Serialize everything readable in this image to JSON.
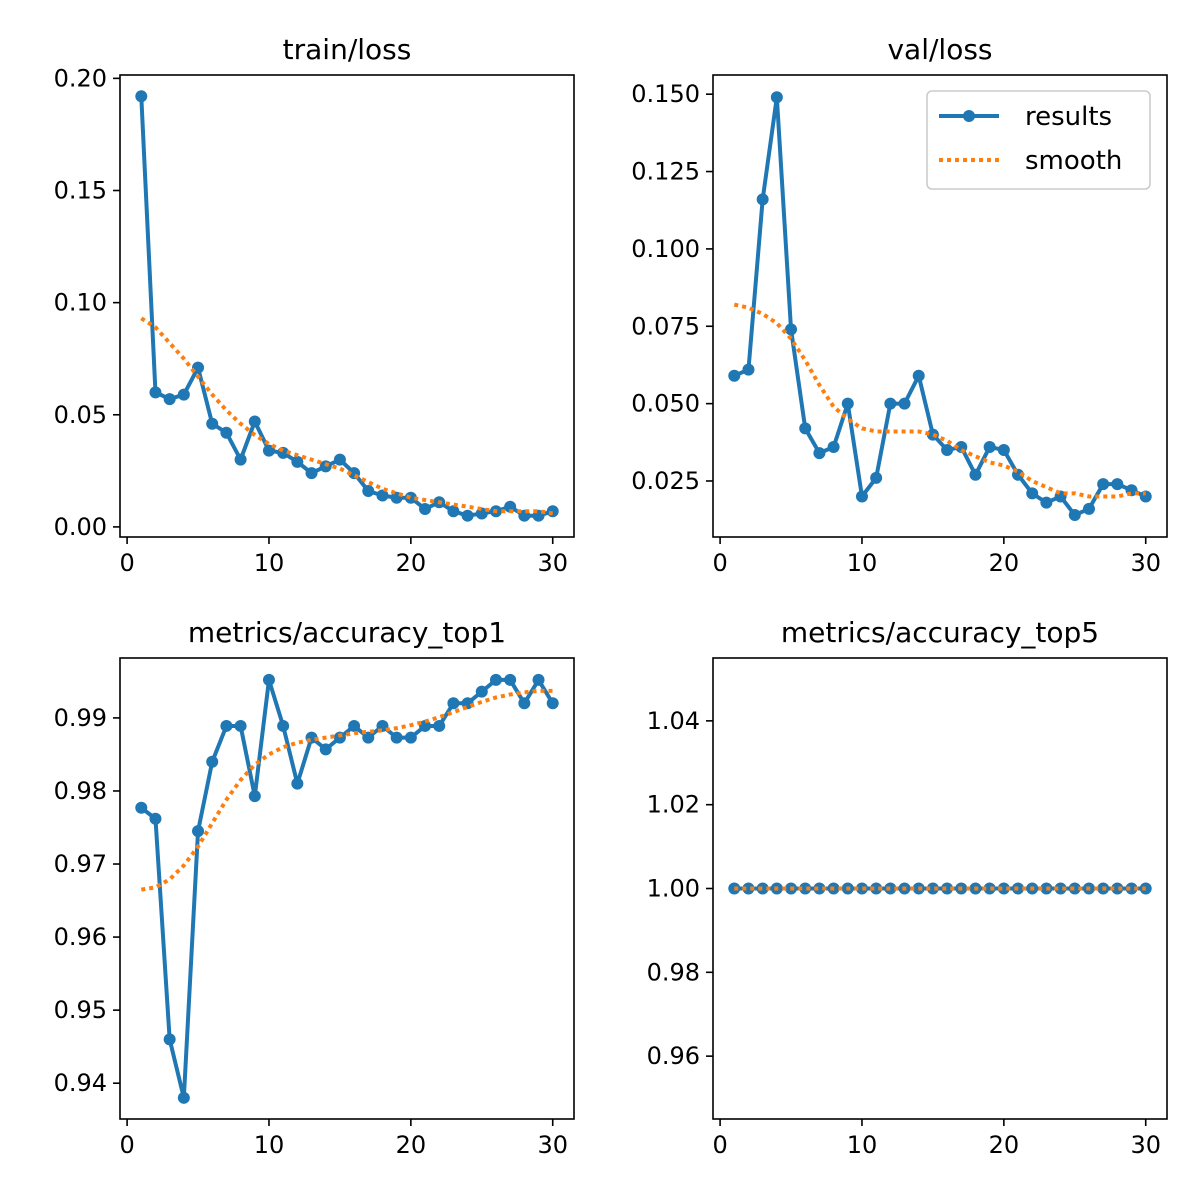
{
  "colors": {
    "results": "#1f77b4",
    "smooth": "#ff7f0e",
    "axis": "#000000",
    "legend_border": "#cccccc"
  },
  "legend": {
    "placement": "top-right",
    "items": [
      {
        "label": "results",
        "series": "results"
      },
      {
        "label": "smooth",
        "series": "smooth"
      }
    ]
  },
  "chart_data": [
    {
      "type": "line",
      "title": "train/loss",
      "xlim": [
        -0.5,
        31.5
      ],
      "ylim": [
        -0.0045,
        0.2015
      ],
      "xticks": [
        0,
        10,
        20,
        30
      ],
      "yticks": [
        0.0,
        0.05,
        0.1,
        0.15,
        0.2
      ],
      "ytick_labels": [
        "0.00",
        "0.05",
        "0.10",
        "0.15",
        "0.20"
      ],
      "x": [
        1,
        2,
        3,
        4,
        5,
        6,
        7,
        8,
        9,
        10,
        11,
        12,
        13,
        14,
        15,
        16,
        17,
        18,
        19,
        20,
        21,
        22,
        23,
        24,
        25,
        26,
        27,
        28,
        29,
        30
      ],
      "series": [
        {
          "name": "results",
          "style": "line-markers",
          "values": [
            0.192,
            0.06,
            0.057,
            0.059,
            0.071,
            0.046,
            0.042,
            0.03,
            0.047,
            0.034,
            0.033,
            0.029,
            0.024,
            0.027,
            0.03,
            0.024,
            0.016,
            0.014,
            0.013,
            0.013,
            0.008,
            0.011,
            0.007,
            0.005,
            0.006,
            0.007,
            0.009,
            0.005,
            0.005,
            0.007
          ]
        },
        {
          "name": "smooth",
          "style": "dotted",
          "values": [
            0.093,
            0.089,
            0.082,
            0.075,
            0.067,
            0.059,
            0.052,
            0.046,
            0.041,
            0.037,
            0.034,
            0.032,
            0.03,
            0.028,
            0.026,
            0.023,
            0.02,
            0.017,
            0.015,
            0.013,
            0.012,
            0.011,
            0.01,
            0.009,
            0.008,
            0.007,
            0.007,
            0.007,
            0.007,
            0.006
          ]
        }
      ],
      "legend": false
    },
    {
      "type": "line",
      "title": "val/loss",
      "xlim": [
        -0.5,
        31.5
      ],
      "ylim": [
        0.0069,
        0.1562
      ],
      "xticks": [
        0,
        10,
        20,
        30
      ],
      "yticks": [
        0.025,
        0.05,
        0.075,
        0.1,
        0.125,
        0.15
      ],
      "ytick_labels": [
        "0.025",
        "0.050",
        "0.075",
        "0.100",
        "0.125",
        "0.150"
      ],
      "x": [
        1,
        2,
        3,
        4,
        5,
        6,
        7,
        8,
        9,
        10,
        11,
        12,
        13,
        14,
        15,
        16,
        17,
        18,
        19,
        20,
        21,
        22,
        23,
        24,
        25,
        26,
        27,
        28,
        29,
        30
      ],
      "series": [
        {
          "name": "results",
          "style": "line-markers",
          "values": [
            0.059,
            0.061,
            0.116,
            0.149,
            0.074,
            0.042,
            0.034,
            0.036,
            0.05,
            0.02,
            0.026,
            0.05,
            0.05,
            0.059,
            0.04,
            0.035,
            0.036,
            0.027,
            0.036,
            0.035,
            0.027,
            0.021,
            0.018,
            0.02,
            0.014,
            0.016,
            0.024,
            0.024,
            0.022,
            0.02
          ]
        },
        {
          "name": "smooth",
          "style": "dotted",
          "values": [
            0.082,
            0.081,
            0.079,
            0.076,
            0.071,
            0.064,
            0.056,
            0.049,
            0.045,
            0.042,
            0.041,
            0.041,
            0.041,
            0.041,
            0.04,
            0.038,
            0.035,
            0.033,
            0.031,
            0.03,
            0.028,
            0.025,
            0.023,
            0.021,
            0.021,
            0.02,
            0.02,
            0.02,
            0.021,
            0.021
          ]
        }
      ],
      "legend": true
    },
    {
      "type": "line",
      "title": "metrics/accuracy_top1",
      "xlim": [
        -0.5,
        31.5
      ],
      "ylim": [
        0.9351,
        0.9982
      ],
      "xticks": [
        0,
        10,
        20,
        30
      ],
      "yticks": [
        0.94,
        0.95,
        0.96,
        0.97,
        0.98,
        0.99
      ],
      "ytick_labels": [
        "0.94",
        "0.95",
        "0.96",
        "0.97",
        "0.98",
        "0.99"
      ],
      "x": [
        1,
        2,
        3,
        4,
        5,
        6,
        7,
        8,
        9,
        10,
        11,
        12,
        13,
        14,
        15,
        16,
        17,
        18,
        19,
        20,
        21,
        22,
        23,
        24,
        25,
        26,
        27,
        28,
        29,
        30
      ],
      "series": [
        {
          "name": "results",
          "style": "line-markers",
          "values": [
            0.9777,
            0.9762,
            0.946,
            0.938,
            0.9745,
            0.984,
            0.9889,
            0.9889,
            0.9793,
            0.9952,
            0.9889,
            0.981,
            0.9873,
            0.9857,
            0.9873,
            0.9889,
            0.9873,
            0.9889,
            0.9873,
            0.9873,
            0.9889,
            0.9889,
            0.992,
            0.992,
            0.9936,
            0.9952,
            0.9952,
            0.992,
            0.9952,
            0.992
          ]
        },
        {
          "name": "smooth",
          "style": "dotted",
          "values": [
            0.9665,
            0.9668,
            0.9679,
            0.9698,
            0.9724,
            0.9756,
            0.9788,
            0.9815,
            0.9836,
            0.985,
            0.986,
            0.9866,
            0.987,
            0.9873,
            0.9876,
            0.9879,
            0.9881,
            0.9883,
            0.9886,
            0.989,
            0.9895,
            0.9901,
            0.9908,
            0.9915,
            0.9922,
            0.9928,
            0.9932,
            0.9935,
            0.9937,
            0.9937
          ]
        }
      ],
      "legend": false
    },
    {
      "type": "line",
      "title": "metrics/accuracy_top5",
      "xlim": [
        -0.5,
        31.5
      ],
      "ylim": [
        0.945,
        1.055
      ],
      "xticks": [
        0,
        10,
        20,
        30
      ],
      "yticks": [
        0.96,
        0.98,
        1.0,
        1.02,
        1.04
      ],
      "ytick_labels": [
        "0.96",
        "0.98",
        "1.00",
        "1.02",
        "1.04"
      ],
      "x": [
        1,
        2,
        3,
        4,
        5,
        6,
        7,
        8,
        9,
        10,
        11,
        12,
        13,
        14,
        15,
        16,
        17,
        18,
        19,
        20,
        21,
        22,
        23,
        24,
        25,
        26,
        27,
        28,
        29,
        30
      ],
      "series": [
        {
          "name": "results",
          "style": "line-markers",
          "values": [
            1,
            1,
            1,
            1,
            1,
            1,
            1,
            1,
            1,
            1,
            1,
            1,
            1,
            1,
            1,
            1,
            1,
            1,
            1,
            1,
            1,
            1,
            1,
            1,
            1,
            1,
            1,
            1,
            1,
            1
          ]
        },
        {
          "name": "smooth",
          "style": "dotted",
          "values": [
            1,
            1,
            1,
            1,
            1,
            1,
            1,
            1,
            1,
            1,
            1,
            1,
            1,
            1,
            1,
            1,
            1,
            1,
            1,
            1,
            1,
            1,
            1,
            1,
            1,
            1,
            1,
            1,
            1,
            1
          ]
        }
      ],
      "legend": false
    }
  ]
}
